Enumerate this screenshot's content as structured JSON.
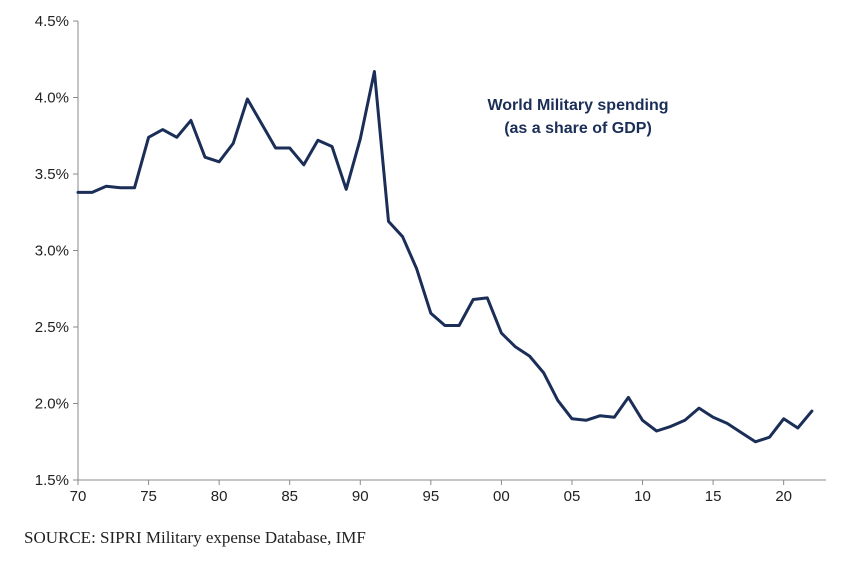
{
  "chart_data": {
    "type": "line",
    "title": "World Military spending",
    "subtitle": "(as a share of GDP)",
    "xlabel": "",
    "ylabel": "",
    "x_tick_labels": [
      "70",
      "75",
      "80",
      "85",
      "90",
      "95",
      "00",
      "05",
      "10",
      "15",
      "20"
    ],
    "x_ticks": [
      1970,
      1975,
      1980,
      1985,
      1990,
      1995,
      2000,
      2005,
      2010,
      2015,
      2020
    ],
    "y_tick_labels": [
      "1.5%",
      "2.0%",
      "2.5%",
      "3.0%",
      "3.5%",
      "4.0%",
      "4.5%"
    ],
    "y_ticks": [
      1.5,
      2.0,
      2.5,
      3.0,
      3.5,
      4.0,
      4.5
    ],
    "xlim": [
      1970,
      2023
    ],
    "ylim": [
      1.5,
      4.5
    ],
    "grid": false,
    "line_color": "#1b2e57",
    "series": [
      {
        "x": [
          1970,
          1971,
          1972,
          1973,
          1974,
          1975,
          1976,
          1977,
          1978,
          1979,
          1980,
          1981,
          1982,
          1983,
          1984,
          1985,
          1986,
          1987,
          1988,
          1989,
          1990,
          1991,
          1992,
          1993,
          1994,
          1995,
          1996,
          1997,
          1998,
          1999,
          2000,
          2001,
          2002,
          2003,
          2004,
          2005,
          2006,
          2007,
          2008,
          2009,
          2010,
          2011,
          2012,
          2013,
          2014,
          2015,
          2016,
          2017,
          2018,
          2019,
          2020,
          2021,
          2022
        ],
        "values": [
          3.38,
          3.38,
          3.42,
          3.41,
          3.41,
          3.74,
          3.79,
          3.74,
          3.85,
          3.61,
          3.58,
          3.7,
          3.99,
          3.83,
          3.67,
          3.67,
          3.56,
          3.72,
          3.68,
          3.4,
          3.73,
          4.17,
          3.19,
          3.09,
          2.88,
          2.59,
          2.51,
          2.51,
          2.68,
          2.69,
          2.46,
          2.37,
          2.31,
          2.2,
          2.02,
          1.9,
          1.89,
          1.92,
          1.91,
          2.04,
          1.89,
          1.82,
          1.85,
          1.89,
          1.97,
          1.91,
          1.87,
          1.81,
          1.75,
          1.78,
          1.9,
          1.84,
          1.95
        ]
      }
    ]
  },
  "source": "SOURCE: SIPRI Military expense Database, IMF"
}
